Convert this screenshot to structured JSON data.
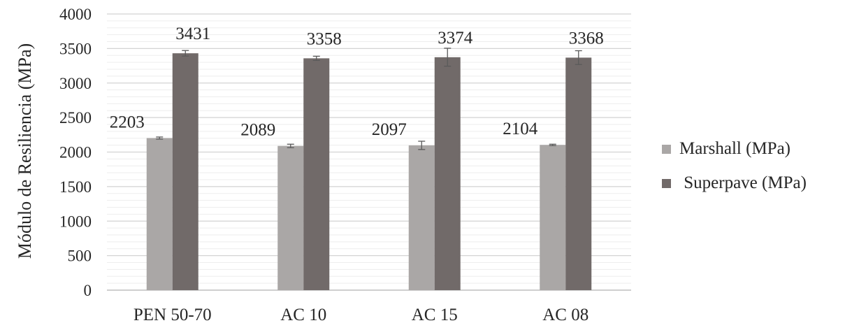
{
  "chart_data": {
    "type": "bar",
    "title": "",
    "xlabel": "",
    "ylabel": "Módulo de Resiliencia (MPa)",
    "ylim": [
      0,
      4000
    ],
    "yticks": [
      0,
      500,
      1000,
      1500,
      2000,
      2500,
      3000,
      3500,
      4000
    ],
    "ytick_labels": [
      "0",
      "500",
      "1000",
      "1500",
      "2000",
      "2500",
      "3000",
      "3500",
      "4000"
    ],
    "minor_grid_step": 100,
    "grid": true,
    "legend_position": "right",
    "categories": [
      "PEN 50-70",
      "AC 10",
      "AC 15",
      "AC 08"
    ],
    "series": [
      {
        "name": "Marshall (MPa)",
        "color": "#aaa7a6",
        "values": [
          2203,
          2089,
          2097,
          2104
        ],
        "labels": [
          "2203",
          "2089",
          "2097",
          "2104"
        ],
        "errors": [
          15,
          25,
          60,
          10
        ]
      },
      {
        "name": " Superpave (MPa)",
        "color": "#716a69",
        "values": [
          3431,
          3358,
          3374,
          3368
        ],
        "labels": [
          "3431",
          "3358",
          "3374",
          "3368"
        ],
        "errors": [
          40,
          30,
          130,
          100
        ]
      }
    ]
  }
}
